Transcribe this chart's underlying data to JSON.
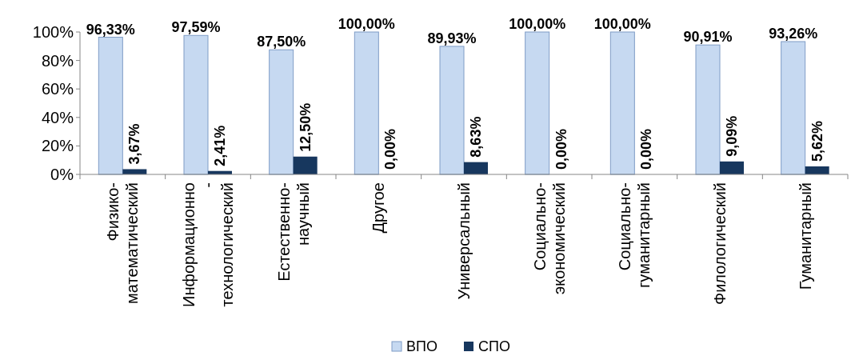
{
  "chart_data": {
    "type": "bar",
    "categories": [
      "Физико-\nматематический",
      "Информационно\n-\nтехнологический",
      "Естественно-\nнаучный",
      "Другое",
      "Универсальный",
      "Социально-\nэкономический",
      "Социально-\nгуманитарный",
      "Филологический",
      "Гуманитарный"
    ],
    "series": [
      {
        "name": "ВПО",
        "color": "#c6d9f1",
        "values": [
          96.33,
          97.59,
          87.5,
          100,
          89.93,
          100,
          100,
          90.91,
          93.26
        ],
        "value_labels": [
          "96,33%",
          "97,59%",
          "87,50%",
          "100,00%",
          "89,93%",
          "100,00%",
          "100,00%",
          "90,91%",
          "93,26%"
        ]
      },
      {
        "name": "СПО",
        "color": "#17375e",
        "values": [
          3.67,
          2.41,
          12.5,
          0,
          8.63,
          0,
          0,
          9.09,
          5.62
        ],
        "value_labels": [
          "3,67%",
          "2,41%",
          "12,50%",
          "0,00%",
          "8,63%",
          "0,00%",
          "0,00%",
          "9,09%",
          "5,62%"
        ]
      }
    ],
    "ylim": [
      0,
      100
    ],
    "yticks": [
      {
        "value": 0,
        "label": "0%"
      },
      {
        "value": 20,
        "label": "20%"
      },
      {
        "value": 40,
        "label": "40%"
      },
      {
        "value": 60,
        "label": "60%"
      },
      {
        "value": 80,
        "label": "80%"
      },
      {
        "value": 100,
        "label": "100%"
      }
    ],
    "grid": false,
    "legend": "bottom"
  }
}
